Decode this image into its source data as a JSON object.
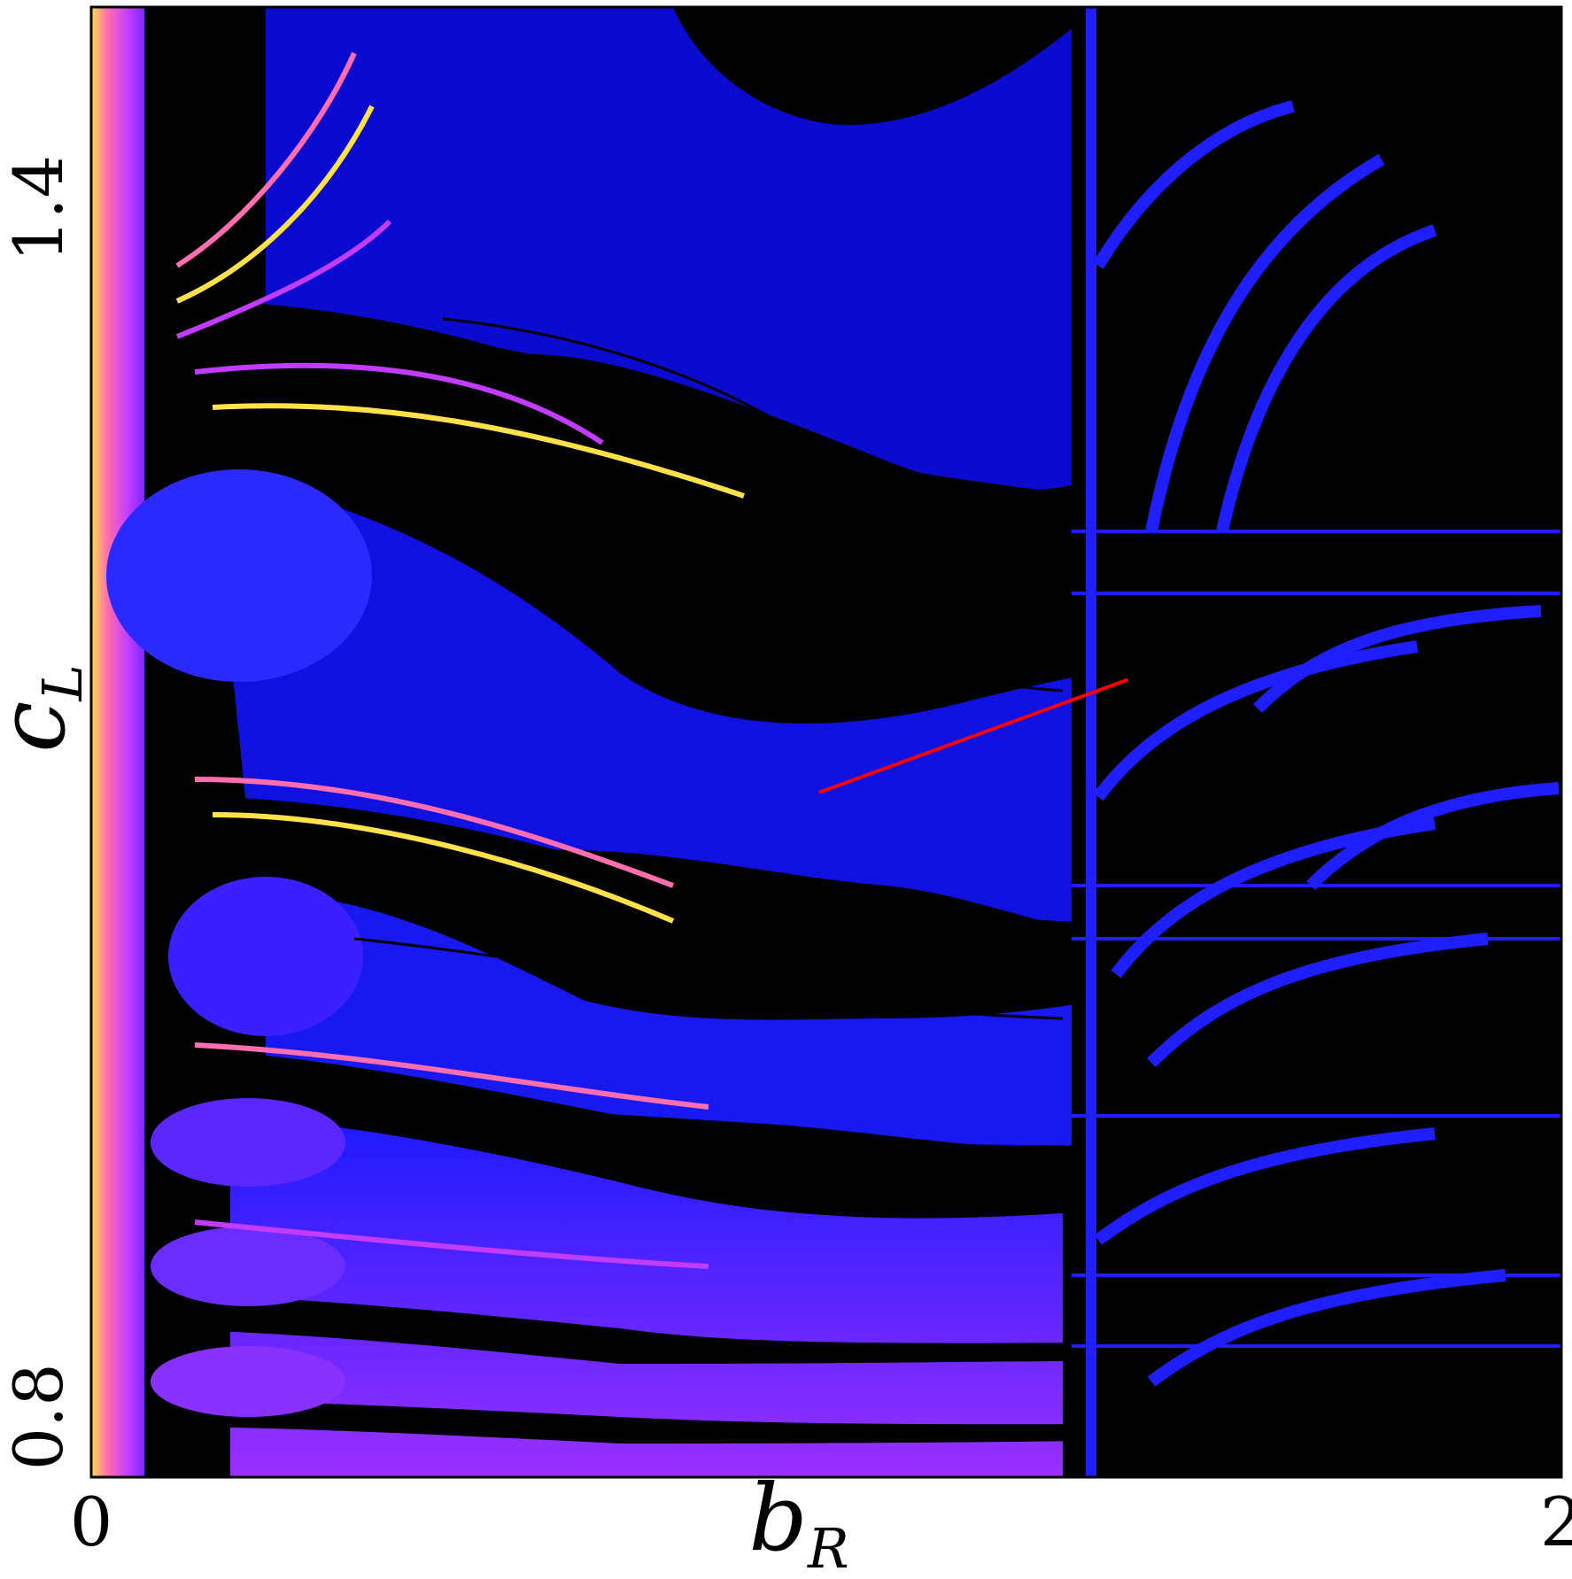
{
  "chart_data": {
    "type": "heatmap",
    "title": "",
    "xlabel": "b",
    "xlabel_subscript": "R",
    "ylabel": "c",
    "ylabel_subscript": "L",
    "xlim": [
      0,
      2
    ],
    "ylim": [
      0.77,
      1.5
    ],
    "x_ticks": [
      {
        "value": 0,
        "label": "0"
      },
      {
        "value": 2,
        "label": "2"
      }
    ],
    "y_ticks": [
      {
        "value": 0.8,
        "label": "0.8"
      },
      {
        "value": 1.4,
        "label": "1.4"
      }
    ],
    "colormap": [
      "#000000",
      "#0b0bd0",
      "#1a1aff",
      "#7a28ff",
      "#c23cff",
      "#ff6fb0",
      "#ffe14a"
    ],
    "grid": false,
    "overlay_segments": [
      {
        "name": "red-line",
        "color": "#ff0000",
        "x": [
          0.99,
          1.41
        ],
        "y": [
          1.11,
          1.166
        ]
      }
    ]
  }
}
